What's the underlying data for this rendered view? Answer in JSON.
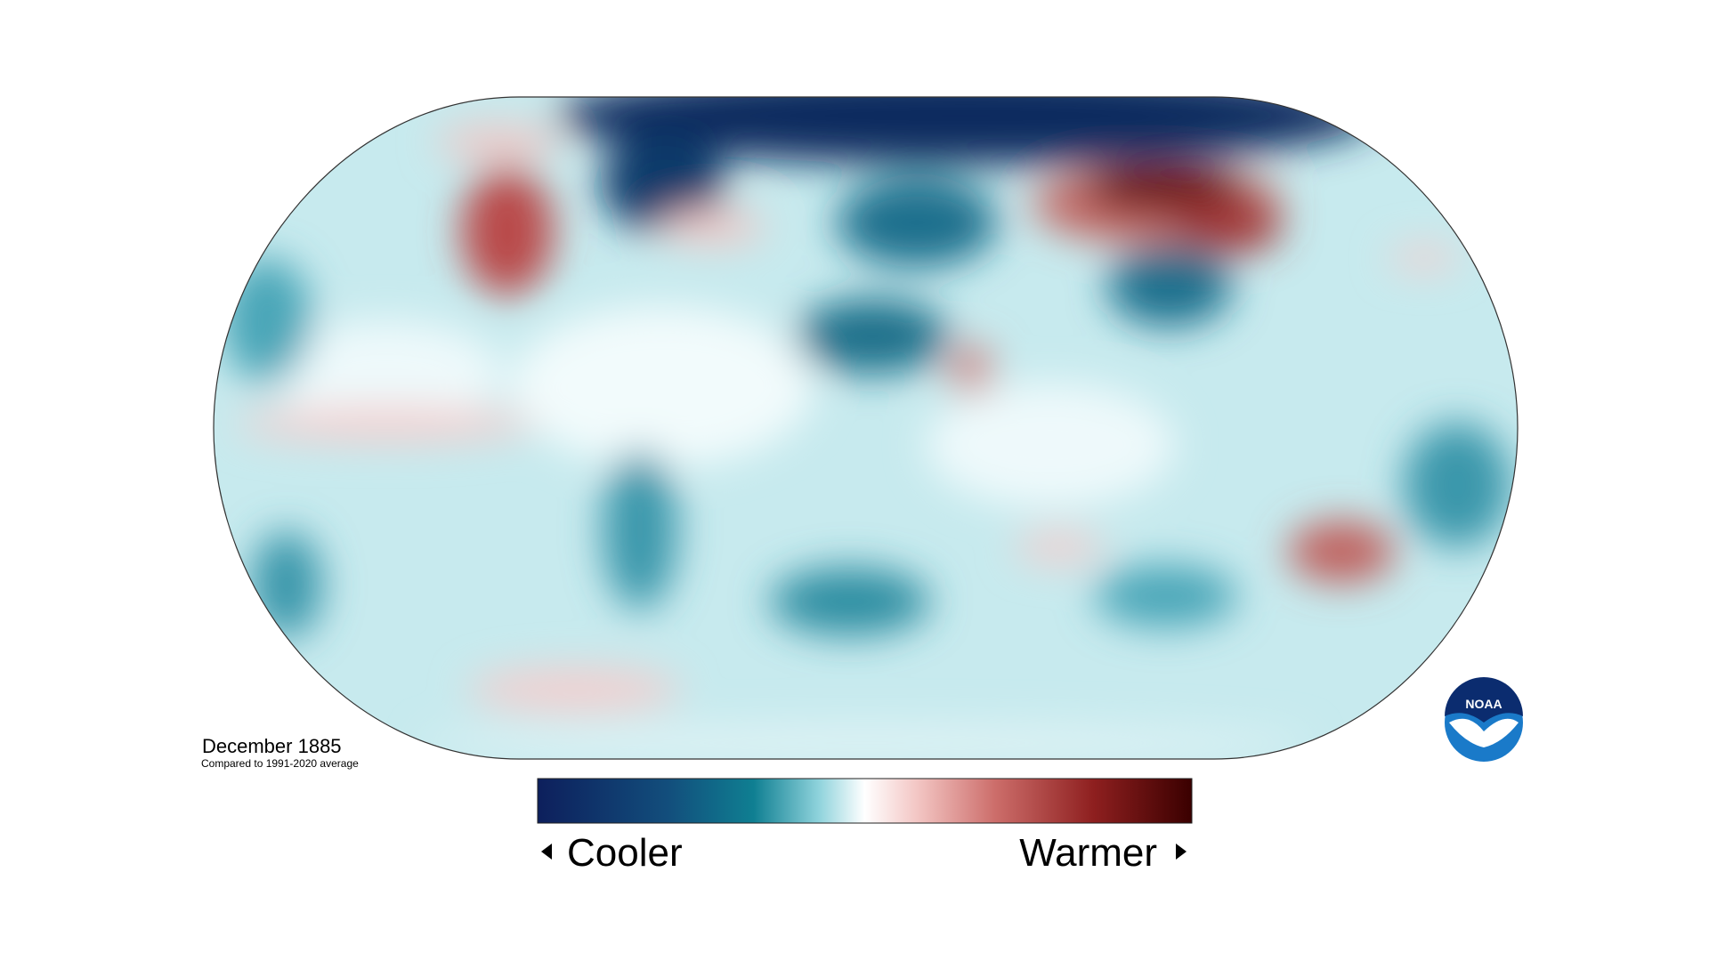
{
  "map": {
    "title": "December 1885",
    "subtitle": "Compared to 1991-2020 average",
    "legend": {
      "low_label": "Cooler",
      "high_label": "Warmer"
    },
    "logo": "NOAA"
  }
}
